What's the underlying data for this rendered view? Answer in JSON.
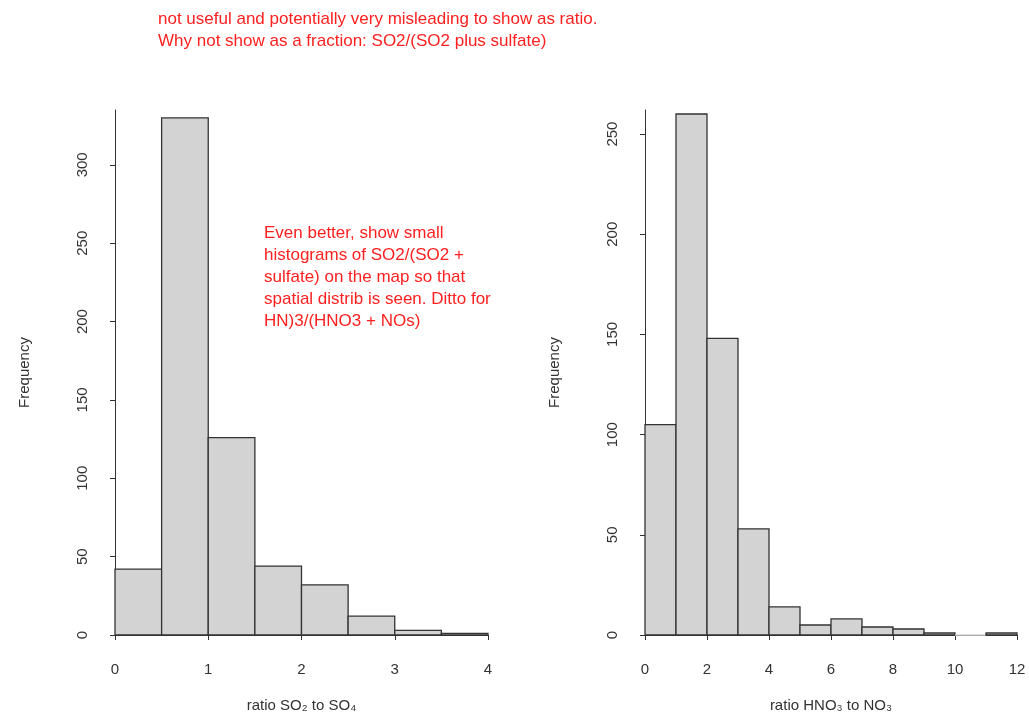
{
  "chart_data": [
    {
      "type": "histogram",
      "xlabel": "ratio SO₂ to SO₄",
      "ylabel": "Frequency",
      "color": "#d3d3d3",
      "bins": [
        0,
        0.5,
        1,
        1.5,
        2,
        2.5,
        3,
        3.5,
        4
      ],
      "values": [
        42,
        330,
        126,
        44,
        32,
        12,
        3,
        1
      ],
      "xlim": [
        0,
        4
      ],
      "xticks": [
        0,
        1,
        2,
        3,
        4
      ],
      "ylim": [
        0,
        335
      ],
      "yticks": [
        0,
        50,
        100,
        150,
        200,
        250,
        300
      ],
      "annotations": [
        "not useful and potentially very misleading to show as ratio. Why not show as a fraction: SO2/(SO2 plus sulfate)",
        "Even better, show small histograms of SO2/(SO2 + sulfate) on the map so that spatial distrib is seen. Ditto for HN)3/(HNO3 + NOs)"
      ]
    },
    {
      "type": "histogram",
      "xlabel": "ratio HNO₃ to NO₃",
      "ylabel": "Frequency",
      "color": "#d3d3d3",
      "bins": [
        0,
        1,
        2,
        3,
        4,
        5,
        6,
        7,
        8,
        9,
        10,
        11,
        12
      ],
      "values": [
        105,
        260,
        148,
        53,
        14,
        5,
        8,
        4,
        3,
        1,
        0,
        1
      ],
      "xlim": [
        0,
        12
      ],
      "xticks": [
        0,
        2,
        4,
        6,
        8,
        10,
        12
      ],
      "ylim": [
        0,
        262
      ],
      "yticks": [
        0,
        50,
        100,
        150,
        200,
        250
      ]
    }
  ]
}
